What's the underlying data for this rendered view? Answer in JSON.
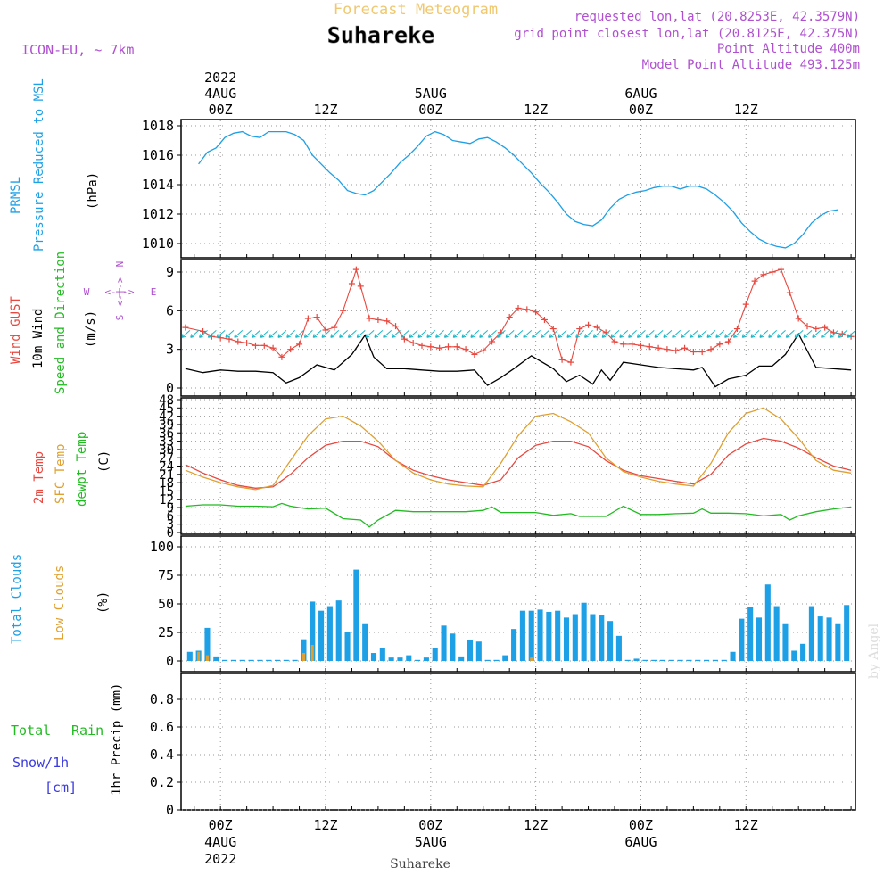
{
  "header": {
    "forecast_title": "Forecast Meteogram",
    "location": "Suhareke",
    "model": "ICON-EU, ~ 7km",
    "requested": "requested lon,lat (20.8253E, 42.3579N)",
    "grid_point": "grid point closest lon,lat (20.8125E, 42.375N)",
    "point_altitude": "Point Altitude 400m",
    "model_altitude": "Model Point Altitude 493.125m",
    "footer_location": "Suhareke",
    "watermark": "by Angel"
  },
  "colors": {
    "pressure": "#1ea0e6",
    "gust": "#e8483f",
    "wind": "#000000",
    "wind_label_green": "#22bb22",
    "temp2m": "#e8483f",
    "sfc_temp": "#e0a030",
    "dewpt": "#22bb22",
    "total_clouds": "#1ea0e6",
    "low_clouds": "#e0a030",
    "rain": "#22bb22",
    "snow": "#3a3ae0",
    "purple": "#b050d0",
    "title_orange": "#f0c870"
  },
  "time_axis": {
    "top_labels": [
      {
        "hour": 0,
        "lines": [
          "2022",
          "4AUG",
          "00Z"
        ]
      },
      {
        "hour": 12,
        "lines": [
          "12Z"
        ]
      },
      {
        "hour": 24,
        "lines": [
          "5AUG",
          "00Z"
        ]
      },
      {
        "hour": 36,
        "lines": [
          "12Z"
        ]
      },
      {
        "hour": 48,
        "lines": [
          "6AUG",
          "00Z"
        ]
      },
      {
        "hour": 60,
        "lines": [
          "12Z"
        ]
      }
    ],
    "bottom_labels": [
      {
        "hour": 0,
        "lines": [
          "00Z",
          "4AUG",
          "2022"
        ]
      },
      {
        "hour": 12,
        "lines": [
          "12Z"
        ]
      },
      {
        "hour": 24,
        "lines": [
          "00Z",
          "5AUG"
        ]
      },
      {
        "hour": 36,
        "lines": [
          "12Z"
        ]
      },
      {
        "hour": 48,
        "lines": [
          "00Z",
          "6AUG"
        ]
      },
      {
        "hour": 60,
        "lines": [
          "12Z"
        ]
      }
    ]
  },
  "panels": {
    "pressure": {
      "label1": "PRMSL",
      "label2": "Pressure Reduced to MSL",
      "unit": "(hPa)",
      "ticks": [
        1010,
        1012,
        1014,
        1016,
        1018
      ]
    },
    "wind": {
      "label_gust": "Wind GUST",
      "label_wind": "10m Wind",
      "label_dir": "Speed and Direction",
      "unit": "(m/s)",
      "compass_n": "N",
      "compass_s": "S",
      "compass_w": "W",
      "compass_e": "E",
      "compass_arrows": "<-|->",
      "ticks": [
        0,
        3,
        6,
        9
      ]
    },
    "temp": {
      "label_2m": "2m Temp",
      "label_sfc": "SFC Temp",
      "label_dew": "dewpt Temp",
      "unit": "(C)",
      "ticks": [
        0,
        3,
        6,
        9,
        12,
        15,
        18,
        21,
        24,
        27,
        30,
        33,
        36,
        39,
        42,
        45,
        48
      ]
    },
    "clouds": {
      "label_total": "Total Clouds",
      "label_low": "Low Clouds",
      "unit": "(%)",
      "ticks": [
        0,
        25,
        50,
        75,
        100
      ]
    },
    "precip": {
      "label_total": "Total",
      "label_rain": "Rain",
      "label_snow": "Snow/1h",
      "label_cm": "[cm]",
      "unit": "1hr Precip (mm)",
      "ticks": [
        "0",
        "0.2",
        "0.4",
        "0.6",
        "0.8"
      ]
    }
  },
  "chart_data": [
    {
      "type": "line",
      "name": "pressure",
      "x": [
        -2.5,
        -1.5,
        -0.5,
        0.5,
        1.5,
        2.5,
        3.5,
        4.5,
        5.5,
        6.5,
        7.5,
        8.5,
        9.5,
        10.5,
        11.5,
        12.5,
        13.5,
        14.5,
        15.5,
        16.5,
        17.5,
        18.5,
        19.5,
        20.5,
        21.5,
        22.5,
        23.5,
        24.5,
        25.5,
        26.5,
        27.5,
        28.5,
        29.5,
        30.5,
        31.5,
        32.5,
        33.5,
        34.5,
        35.5,
        36.5,
        37.5,
        38.5,
        39.5,
        40.5,
        41.5,
        42.5,
        43.5,
        44.5,
        45.5,
        46.5,
        47.5,
        48.5,
        49.5,
        50.5,
        51.5,
        52.5,
        53.5,
        54.5,
        55.5,
        56.5,
        57.5,
        58.5,
        59.5,
        60.5,
        61.5,
        62.5,
        63.5,
        64.5,
        65.5,
        66.5,
        67.5,
        68.5,
        69.5,
        70.5
      ],
      "y": [
        1015.4,
        1016.2,
        1016.5,
        1017.2,
        1017.5,
        1017.6,
        1017.3,
        1017.2,
        1017.6,
        1017.6,
        1017.6,
        1017.4,
        1017.0,
        1016.0,
        1015.4,
        1014.8,
        1014.3,
        1013.6,
        1013.4,
        1013.3,
        1013.6,
        1014.2,
        1014.8,
        1015.5,
        1016.0,
        1016.6,
        1017.3,
        1017.6,
        1017.4,
        1017.0,
        1016.9,
        1016.8,
        1017.1,
        1017.2,
        1016.9,
        1016.5,
        1016.0,
        1015.4,
        1014.8,
        1014.1,
        1013.5,
        1012.8,
        1012.0,
        1011.5,
        1011.3,
        1011.2,
        1011.6,
        1012.4,
        1013.0,
        1013.3,
        1013.5,
        1013.6,
        1013.8,
        1013.9,
        1013.9,
        1013.7,
        1013.9,
        1013.9,
        1013.7,
        1013.3,
        1012.8,
        1012.2,
        1011.4,
        1010.8,
        1010.3,
        1010.0,
        1009.8,
        1009.7,
        1010.0,
        1010.6,
        1011.4,
        1011.9,
        1012.2,
        1012.3
      ],
      "ylim": [
        1009.5,
        1018.5
      ]
    },
    {
      "type": "line",
      "name": "wind",
      "x": [
        -4,
        -2,
        0,
        2,
        4,
        6,
        7.5,
        9,
        11,
        13,
        15,
        16.5,
        17.5,
        19,
        21,
        23,
        25,
        27,
        29,
        30.5,
        32,
        33.5,
        35.5,
        38,
        39.5,
        41,
        42.5,
        43.5,
        44.5,
        46,
        48,
        50,
        52,
        54,
        55,
        56.5,
        58,
        60,
        61.5,
        63,
        64.5,
        66,
        68,
        70,
        72
      ],
      "y": [
        1.5,
        1.2,
        1.4,
        1.3,
        1.3,
        1.2,
        0.4,
        0.8,
        1.8,
        1.4,
        2.6,
        4.1,
        2.4,
        1.5,
        1.5,
        1.4,
        1.3,
        1.3,
        1.4,
        0.2,
        0.8,
        1.5,
        2.5,
        1.5,
        0.5,
        1.0,
        0.3,
        1.4,
        0.6,
        2.0,
        1.8,
        1.6,
        1.5,
        1.4,
        1.6,
        0.1,
        0.7,
        1.0,
        1.7,
        1.7,
        2.6,
        4.2,
        1.6,
        1.5,
        1.4
      ],
      "ylim": [
        0,
        10
      ]
    },
    {
      "type": "line",
      "name": "gust",
      "x": [
        -4,
        -2,
        -1,
        0,
        1,
        2,
        3,
        4,
        5,
        6,
        7,
        8,
        9,
        10,
        11,
        12,
        13,
        14,
        15,
        15.5,
        16,
        17,
        18,
        19,
        20,
        21,
        22,
        23,
        24,
        25,
        26,
        27,
        28,
        29,
        30,
        31,
        32,
        33,
        34,
        35,
        36,
        37,
        38,
        39,
        40,
        41,
        42,
        43,
        44,
        45,
        46,
        47,
        48,
        49,
        50,
        51,
        52,
        53,
        54,
        55,
        56,
        57,
        58,
        59,
        60,
        61,
        62,
        63,
        64,
        65,
        66,
        67,
        68,
        69,
        70,
        71,
        72
      ],
      "y": [
        4.7,
        4.4,
        4.0,
        3.9,
        3.8,
        3.6,
        3.5,
        3.3,
        3.3,
        3.1,
        2.4,
        3.0,
        3.4,
        5.4,
        5.5,
        4.5,
        4.7,
        6.0,
        8.1,
        9.2,
        7.9,
        5.4,
        5.3,
        5.2,
        4.8,
        3.8,
        3.5,
        3.3,
        3.2,
        3.1,
        3.2,
        3.2,
        3.0,
        2.6,
        2.9,
        3.6,
        4.3,
        5.5,
        6.2,
        6.1,
        5.9,
        5.3,
        4.6,
        2.2,
        2.0,
        4.6,
        4.9,
        4.7,
        4.3,
        3.6,
        3.4,
        3.4,
        3.3,
        3.2,
        3.1,
        3.0,
        2.9,
        3.1,
        2.8,
        2.8,
        3.0,
        3.4,
        3.6,
        4.6,
        6.5,
        8.3,
        8.8,
        9.0,
        9.2,
        7.4,
        5.4,
        4.8,
        4.6,
        4.7,
        4.3,
        4.2,
        4.0
      ],
      "ylim": [
        0,
        10
      ]
    },
    {
      "type": "line",
      "name": "temperature",
      "series": [
        {
          "name": "2m Temp",
          "x": [
            -4,
            -2,
            0,
            2,
            4,
            6,
            8,
            10,
            12,
            14,
            16,
            18,
            20,
            22,
            24,
            26,
            28,
            30,
            32,
            34,
            36,
            38,
            40,
            42,
            44,
            46,
            48,
            50,
            52,
            54,
            56,
            58,
            60,
            62,
            64,
            66,
            68,
            70,
            72
          ],
          "y": [
            24.5,
            21.5,
            19,
            17,
            16,
            16.5,
            21,
            27,
            31.5,
            33,
            33,
            31,
            26,
            22.5,
            20.5,
            19,
            18,
            17,
            19,
            27,
            31.5,
            33,
            33,
            31,
            26,
            22.5,
            20.5,
            19.5,
            18.5,
            17.5,
            21,
            28,
            32,
            34,
            33,
            30.5,
            27,
            24,
            22.5
          ]
        },
        {
          "name": "SFC Temp",
          "x": [
            -4,
            -2,
            0,
            2,
            4,
            6,
            8,
            10,
            12,
            14,
            16,
            18,
            20,
            22,
            24,
            26,
            28,
            30,
            32,
            34,
            36,
            38,
            40,
            42,
            44,
            46,
            48,
            50,
            52,
            54,
            56,
            58,
            60,
            62,
            64,
            66,
            68,
            70,
            72
          ],
          "y": [
            22.5,
            20,
            18,
            16.5,
            15.5,
            17,
            26,
            35,
            41,
            42,
            38.5,
            33,
            26,
            21.5,
            19,
            17.5,
            16.8,
            16.5,
            25,
            35,
            42,
            43,
            40,
            36,
            27,
            22,
            20,
            18.5,
            17.5,
            16.8,
            25,
            36,
            43,
            45,
            41,
            34,
            26,
            22.5,
            21.5
          ]
        },
        {
          "name": "dewpt Temp",
          "x": [
            -4,
            -2,
            0,
            2,
            4,
            6,
            7,
            8,
            10,
            12,
            14,
            16,
            17,
            18,
            20,
            22,
            24,
            26,
            28,
            30,
            31,
            32,
            34,
            36,
            38,
            40,
            41,
            42,
            44,
            46,
            48,
            50,
            52,
            54,
            55,
            56,
            58,
            60,
            62,
            64,
            65,
            66,
            68,
            70,
            72
          ],
          "y": [
            9.5,
            10,
            10,
            9.5,
            9.5,
            9.3,
            10.5,
            9.5,
            8.5,
            8.8,
            5,
            4.5,
            2,
            4.5,
            8,
            7.5,
            7.5,
            7.5,
            7.5,
            8,
            9.2,
            7.2,
            7.2,
            7.2,
            6.2,
            6.8,
            5.8,
            5.8,
            5.8,
            9.5,
            6.5,
            6.5,
            6.8,
            7,
            8.5,
            7,
            7,
            6.8,
            6,
            6.5,
            4.5,
            6,
            7.5,
            8.5,
            9.2
          ]
        }
      ],
      "ylim": [
        0,
        48
      ]
    },
    {
      "type": "bar",
      "name": "clouds",
      "series": [
        {
          "name": "Total Clouds",
          "x": [
            -3.5,
            -2.5,
            -1.5,
            -0.5,
            0.5,
            1.5,
            2.5,
            3.5,
            4.5,
            5.5,
            6.5,
            7.5,
            8.5,
            9.5,
            10.5,
            11.5,
            12.5,
            13.5,
            14.5,
            15.5,
            16.5,
            17.5,
            18.5,
            19.5,
            20.5,
            21.5,
            22.5,
            23.5,
            24.5,
            25.5,
            26.5,
            27.5,
            28.5,
            29.5,
            30.5,
            31.5,
            32.5,
            33.5,
            34.5,
            35.5,
            36.5,
            37.5,
            38.5,
            39.5,
            40.5,
            41.5,
            42.5,
            43.5,
            44.5,
            45.5,
            46.5,
            47.5,
            48.5,
            49.5,
            50.5,
            51.5,
            52.5,
            53.5,
            54.5,
            55.5,
            56.5,
            57.5,
            58.5,
            59.5,
            60.5,
            61.5,
            62.5,
            63.5,
            64.5,
            65.5,
            66.5,
            67.5,
            68.5,
            69.5,
            70.5,
            71.5
          ],
          "values": [
            8,
            9,
            29,
            4,
            0,
            0,
            0,
            0,
            0,
            0,
            0,
            0,
            0,
            19,
            52,
            44,
            48,
            53,
            25,
            80,
            33,
            7,
            11,
            3,
            3,
            5,
            0,
            3,
            11,
            31,
            24,
            4,
            18,
            17,
            0,
            0,
            5,
            28,
            44,
            44,
            45,
            43,
            44,
            38,
            41,
            51,
            41,
            40,
            35,
            22,
            0,
            2,
            0,
            0,
            0,
            0,
            0,
            0,
            0,
            0,
            0,
            0,
            8,
            37,
            47,
            38,
            67,
            48,
            33,
            9,
            15,
            48,
            39,
            38,
            33,
            49
          ]
        },
        {
          "name": "Low Clouds",
          "x": [
            -2.5,
            -1.5,
            9.5,
            10.5,
            35.5
          ],
          "values": [
            8,
            5,
            7,
            14,
            3
          ]
        }
      ],
      "ylim": [
        0,
        105
      ]
    },
    {
      "type": "bar",
      "name": "precipitation",
      "series": [
        {
          "name": "Total Rain",
          "values": []
        },
        {
          "name": "Snow/1h",
          "values": []
        }
      ],
      "ylim": [
        0,
        1
      ]
    }
  ]
}
